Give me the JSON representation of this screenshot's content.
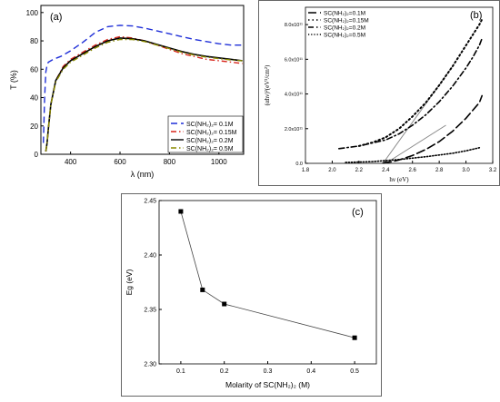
{
  "chart_data": [
    {
      "panel_label": "(a)",
      "type": "line",
      "xlabel": "λ (nm)",
      "ylabel": "T (%)",
      "xlim": [
        280,
        1100
      ],
      "ylim": [
        0,
        105
      ],
      "x_ticks": [
        "400",
        "600",
        "800",
        "1000"
      ],
      "y_ticks": [
        "0",
        "20",
        "40",
        "60",
        "80",
        "100"
      ],
      "legend_placement": "bottom-right",
      "series": [
        {
          "name": "SC(NH2)2= 0.1M",
          "color": "#1f2fd8",
          "dash": "dash",
          "x": [
            290,
            295,
            300,
            305,
            310,
            330,
            360,
            400,
            450,
            500,
            550,
            600,
            650,
            700,
            750,
            800,
            850,
            900,
            950,
            1000,
            1050,
            1095
          ],
          "y": [
            8,
            40,
            58,
            63,
            65,
            67,
            69,
            73,
            79,
            86,
            90,
            91,
            90.5,
            89,
            87,
            85,
            83,
            81,
            79.5,
            78,
            77,
            77
          ]
        },
        {
          "name": "SC(NH2)2= 0.15M",
          "color": "#d8261c",
          "dash": "dashdot",
          "x": [
            300,
            305,
            310,
            320,
            340,
            370,
            400,
            450,
            500,
            550,
            600,
            650,
            700,
            750,
            800,
            850,
            900,
            950,
            1000,
            1050,
            1095
          ],
          "y": [
            2,
            8,
            18,
            35,
            52,
            62,
            67,
            72,
            77,
            81,
            83,
            82,
            80,
            77,
            74,
            71,
            69,
            67,
            66,
            65,
            64
          ]
        },
        {
          "name": "SC(NH2)2= 0.2M",
          "color": "#000000",
          "dash": "solid",
          "x": [
            300,
            305,
            310,
            320,
            340,
            370,
            400,
            450,
            500,
            550,
            600,
            650,
            700,
            750,
            800,
            850,
            900,
            950,
            1000,
            1050,
            1095
          ],
          "y": [
            2,
            8,
            18,
            35,
            52,
            61,
            66,
            71,
            76,
            80,
            82,
            81.5,
            80,
            77.5,
            75,
            72.5,
            70.5,
            69,
            68,
            67,
            66
          ]
        },
        {
          "name": "SC(NH2)2= 0.5M",
          "color": "#8a8a00",
          "dash": "dashdot",
          "x": [
            300,
            305,
            310,
            320,
            340,
            370,
            400,
            450,
            500,
            550,
            600,
            650,
            700,
            750,
            800,
            850,
            900,
            950,
            1000,
            1050,
            1095
          ],
          "y": [
            2,
            8,
            18,
            35,
            51,
            60,
            65,
            70,
            75,
            79,
            81,
            81,
            79.5,
            77,
            74.5,
            72,
            70,
            68.5,
            67.5,
            66.5,
            66
          ]
        }
      ]
    },
    {
      "panel_label": "(b)",
      "type": "line",
      "xlabel": "hν (eV)",
      "ylabel": "(αhν)²(eV²/cm²)",
      "xlim": [
        1.8,
        3.2
      ],
      "ylim": [
        0,
        900000000000.0
      ],
      "x_ticks": [
        "1.8",
        "2.0",
        "2.2",
        "2.4",
        "2.6",
        "2.8",
        "3.0",
        "3.2"
      ],
      "y_ticks": [
        "0.0",
        "2.0x10¹¹",
        "4.0x10¹¹",
        "6.0x10¹¹",
        "8.0x10¹¹"
      ],
      "legend_placement": "top-left",
      "series": [
        {
          "name": "SC(NH2)2=0.1M",
          "color": "#000000",
          "dash": "longdash",
          "x": [
            2.38,
            2.45,
            2.5,
            2.6,
            2.7,
            2.8,
            2.9,
            3.0,
            3.1,
            3.12
          ],
          "y": [
            2000000000.0,
            10000000000.0,
            20000000000.0,
            45000000000.0,
            80000000000.0,
            125000000000.0,
            185000000000.0,
            260000000000.0,
            350000000000.0,
            390000000000.0
          ]
        },
        {
          "name": "SC(NH2)2=0.15M",
          "color": "#000000",
          "dash": "dot",
          "x": [
            2.2,
            2.3,
            2.4,
            2.5,
            2.6,
            2.7,
            2.8,
            2.9,
            3.0,
            3.05,
            3.1,
            3.12
          ],
          "y": [
            100000000000.0,
            120000000000.0,
            150000000000.0,
            200000000000.0,
            270000000000.0,
            350000000000.0,
            450000000000.0,
            560000000000.0,
            680000000000.0,
            740000000000.0,
            800000000000.0,
            830000000000.0
          ]
        },
        {
          "name": "SC(NH2)2=0.2M",
          "color": "#000000",
          "dash": "dashdot",
          "x": [
            2.05,
            2.2,
            2.4,
            2.5,
            2.6,
            2.7,
            2.8,
            2.9,
            3.0,
            3.05,
            3.1,
            3.12
          ],
          "y": [
            85000000000.0,
            100000000000.0,
            135000000000.0,
            170000000000.0,
            220000000000.0,
            280000000000.0,
            355000000000.0,
            445000000000.0,
            550000000000.0,
            610000000000.0,
            680000000000.0,
            720000000000.0
          ]
        },
        {
          "name": "SC(NH2)2=0.5M",
          "color": "#000000",
          "dash": "dense-dot",
          "x": [
            2.1,
            2.3,
            2.5,
            2.7,
            2.9,
            3.0,
            3.1
          ],
          "y": [
            5000000000.0,
            10000000000.0,
            22000000000.0,
            38000000000.0,
            58000000000.0,
            72000000000.0,
            90000000000.0
          ]
        }
      ],
      "fit_lines": [
        {
          "x": [
            2.38,
            2.9
          ],
          "y": [
            0.0,
            560000000000.0
          ]
        },
        {
          "x": [
            2.4,
            2.85
          ],
          "y": [
            0.0,
            220000000000.0
          ]
        }
      ]
    },
    {
      "panel_label": "(c)",
      "type": "line",
      "xlabel": "Molarity of SC(NH2)2 (M)",
      "ylabel": "Eg (eV)",
      "xlim": [
        0.05,
        0.55
      ],
      "ylim": [
        2.3,
        2.45
      ],
      "x_ticks": [
        "0.1",
        "0.2",
        "0.3",
        "0.4",
        "0.5"
      ],
      "y_ticks": [
        "2.30",
        "2.35",
        "2.40",
        "2.45"
      ],
      "x": [
        0.1,
        0.15,
        0.2,
        0.5
      ],
      "y": [
        2.44,
        2.368,
        2.355,
        2.324
      ],
      "marker": "square",
      "color": "#000000"
    }
  ]
}
